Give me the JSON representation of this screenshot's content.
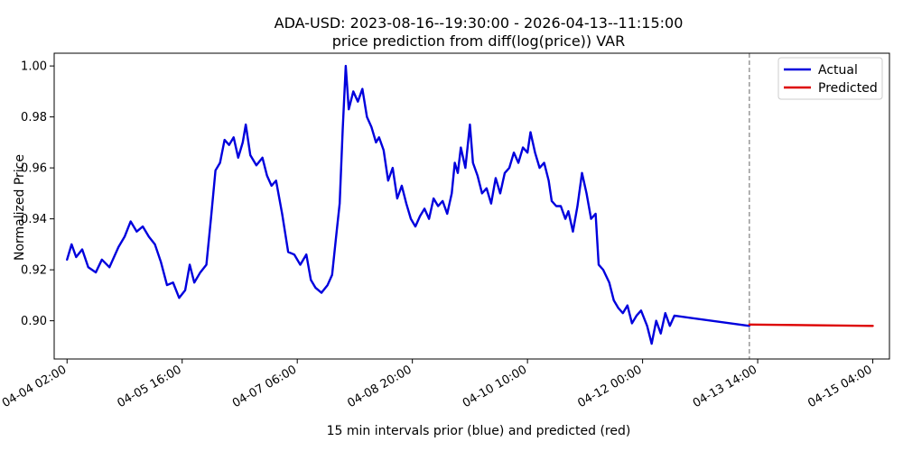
{
  "chart_data": {
    "type": "line",
    "title": "ADA-USD: 2023-08-16--19:30:00 - 2026-04-13--11:15:00",
    "subtitle": "price prediction from diff(log(price)) VAR",
    "xlabel": "15 min intervals prior (blue) and predicted (red)",
    "ylabel": "Normalized Price",
    "ylim": [
      0.885,
      1.005
    ],
    "xlim": [
      "2026-04-03 21:45",
      "2026-04-15 09:30"
    ],
    "y_ticks": [
      0.9,
      0.92,
      0.94,
      0.96,
      0.98,
      1.0
    ],
    "y_tick_labels": [
      "0.90",
      "0.92",
      "0.94",
      "0.96",
      "0.98",
      "1.00"
    ],
    "x_ticks": [
      "2026-04-04 02:00",
      "2026-04-05 16:00",
      "2026-04-07 06:00",
      "2026-04-08 20:00",
      "2026-04-10 10:00",
      "2026-04-12 00:00",
      "2026-04-13 14:00",
      "2026-04-15 04:00"
    ],
    "x_tick_labels": [
      "04-04 02:00",
      "04-05 16:00",
      "04-07 06:00",
      "04-08 20:00",
      "04-10 10:00",
      "04-12 00:00",
      "04-13 14:00",
      "04-15 04:00"
    ],
    "forecast_start": "2026-04-13 11:15",
    "grid": false,
    "legend_position": "top-right",
    "series": [
      {
        "name": "Actual",
        "color": "#0000dd",
        "points": [
          [
            "2026-04-04 02:00",
            0.924
          ],
          [
            "2026-04-04 03:30",
            0.93
          ],
          [
            "2026-04-04 05:00",
            0.925
          ],
          [
            "2026-04-04 07:00",
            0.928
          ],
          [
            "2026-04-04 09:00",
            0.921
          ],
          [
            "2026-04-04 11:30",
            0.919
          ],
          [
            "2026-04-04 13:30",
            0.924
          ],
          [
            "2026-04-04 16:00",
            0.921
          ],
          [
            "2026-04-04 19:00",
            0.929
          ],
          [
            "2026-04-04 21:00",
            0.933
          ],
          [
            "2026-04-04 23:00",
            0.939
          ],
          [
            "2026-04-05 01:00",
            0.935
          ],
          [
            "2026-04-05 03:00",
            0.937
          ],
          [
            "2026-04-05 05:00",
            0.933
          ],
          [
            "2026-04-05 07:00",
            0.93
          ],
          [
            "2026-04-05 09:00",
            0.923
          ],
          [
            "2026-04-05 11:00",
            0.914
          ],
          [
            "2026-04-05 13:00",
            0.915
          ],
          [
            "2026-04-05 15:00",
            0.909
          ],
          [
            "2026-04-05 17:00",
            0.912
          ],
          [
            "2026-04-05 18:30",
            0.922
          ],
          [
            "2026-04-05 20:00",
            0.915
          ],
          [
            "2026-04-05 22:00",
            0.919
          ],
          [
            "2026-04-06 00:00",
            0.922
          ],
          [
            "2026-04-06 01:30",
            0.94
          ],
          [
            "2026-04-06 03:00",
            0.959
          ],
          [
            "2026-04-06 04:30",
            0.962
          ],
          [
            "2026-04-06 06:00",
            0.971
          ],
          [
            "2026-04-06 07:30",
            0.969
          ],
          [
            "2026-04-06 09:00",
            0.972
          ],
          [
            "2026-04-06 10:30",
            0.964
          ],
          [
            "2026-04-06 12:00",
            0.97
          ],
          [
            "2026-04-06 13:00",
            0.977
          ],
          [
            "2026-04-06 14:30",
            0.965
          ],
          [
            "2026-04-06 16:30",
            0.961
          ],
          [
            "2026-04-06 18:30",
            0.964
          ],
          [
            "2026-04-06 20:00",
            0.957
          ],
          [
            "2026-04-06 21:30",
            0.953
          ],
          [
            "2026-04-06 23:00",
            0.955
          ],
          [
            "2026-04-07 01:00",
            0.942
          ],
          [
            "2026-04-07 03:00",
            0.927
          ],
          [
            "2026-04-07 05:00",
            0.926
          ],
          [
            "2026-04-07 07:00",
            0.922
          ],
          [
            "2026-04-07 09:00",
            0.926
          ],
          [
            "2026-04-07 10:30",
            0.916
          ],
          [
            "2026-04-07 12:00",
            0.913
          ],
          [
            "2026-04-07 14:00",
            0.911
          ],
          [
            "2026-04-07 16:00",
            0.914
          ],
          [
            "2026-04-07 17:30",
            0.918
          ],
          [
            "2026-04-07 19:00",
            0.935
          ],
          [
            "2026-04-07 20:00",
            0.946
          ],
          [
            "2026-04-07 21:00",
            0.975
          ],
          [
            "2026-04-07 22:00",
            1.0
          ],
          [
            "2026-04-07 23:00",
            0.983
          ],
          [
            "2026-04-08 00:30",
            0.99
          ],
          [
            "2026-04-08 02:00",
            0.986
          ],
          [
            "2026-04-08 03:30",
            0.991
          ],
          [
            "2026-04-08 05:00",
            0.98
          ],
          [
            "2026-04-08 06:30",
            0.976
          ],
          [
            "2026-04-08 08:00",
            0.97
          ],
          [
            "2026-04-08 09:00",
            0.972
          ],
          [
            "2026-04-08 10:30",
            0.967
          ],
          [
            "2026-04-08 12:00",
            0.955
          ],
          [
            "2026-04-08 13:30",
            0.96
          ],
          [
            "2026-04-08 15:00",
            0.948
          ],
          [
            "2026-04-08 16:30",
            0.953
          ],
          [
            "2026-04-08 18:00",
            0.946
          ],
          [
            "2026-04-08 19:30",
            0.94
          ],
          [
            "2026-04-08 21:00",
            0.937
          ],
          [
            "2026-04-08 22:30",
            0.941
          ],
          [
            "2026-04-09 00:00",
            0.944
          ],
          [
            "2026-04-09 01:30",
            0.94
          ],
          [
            "2026-04-09 03:00",
            0.948
          ],
          [
            "2026-04-09 04:30",
            0.945
          ],
          [
            "2026-04-09 06:00",
            0.947
          ],
          [
            "2026-04-09 07:30",
            0.942
          ],
          [
            "2026-04-09 09:00",
            0.95
          ],
          [
            "2026-04-09 10:00",
            0.962
          ],
          [
            "2026-04-09 11:00",
            0.958
          ],
          [
            "2026-04-09 12:00",
            0.968
          ],
          [
            "2026-04-09 13:30",
            0.96
          ],
          [
            "2026-04-09 15:00",
            0.977
          ],
          [
            "2026-04-09 16:00",
            0.962
          ],
          [
            "2026-04-09 17:30",
            0.957
          ],
          [
            "2026-04-09 19:00",
            0.95
          ],
          [
            "2026-04-09 20:30",
            0.952
          ],
          [
            "2026-04-09 22:00",
            0.946
          ],
          [
            "2026-04-09 23:30",
            0.956
          ],
          [
            "2026-04-10 01:00",
            0.95
          ],
          [
            "2026-04-10 02:30",
            0.958
          ],
          [
            "2026-04-10 04:00",
            0.96
          ],
          [
            "2026-04-10 05:30",
            0.966
          ],
          [
            "2026-04-10 07:00",
            0.962
          ],
          [
            "2026-04-10 08:30",
            0.968
          ],
          [
            "2026-04-10 10:00",
            0.966
          ],
          [
            "2026-04-10 11:00",
            0.974
          ],
          [
            "2026-04-10 12:30",
            0.966
          ],
          [
            "2026-04-10 14:00",
            0.96
          ],
          [
            "2026-04-10 15:30",
            0.962
          ],
          [
            "2026-04-10 17:00",
            0.955
          ],
          [
            "2026-04-10 18:00",
            0.947
          ],
          [
            "2026-04-10 19:30",
            0.945
          ],
          [
            "2026-04-10 21:00",
            0.945
          ],
          [
            "2026-04-10 22:30",
            0.94
          ],
          [
            "2026-04-10 23:30",
            0.943
          ],
          [
            "2026-04-11 01:00",
            0.935
          ],
          [
            "2026-04-11 02:30",
            0.945
          ],
          [
            "2026-04-11 04:00",
            0.958
          ],
          [
            "2026-04-11 05:30",
            0.95
          ],
          [
            "2026-04-11 07:00",
            0.94
          ],
          [
            "2026-04-11 08:30",
            0.942
          ],
          [
            "2026-04-11 09:30",
            0.922
          ],
          [
            "2026-04-11 11:00",
            0.92
          ],
          [
            "2026-04-11 13:00",
            0.915
          ],
          [
            "2026-04-11 14:30",
            0.908
          ],
          [
            "2026-04-11 16:00",
            0.905
          ],
          [
            "2026-04-11 17:30",
            0.903
          ],
          [
            "2026-04-11 19:00",
            0.906
          ],
          [
            "2026-04-11 20:30",
            0.899
          ],
          [
            "2026-04-11 22:00",
            0.902
          ],
          [
            "2026-04-11 23:30",
            0.904
          ],
          [
            "2026-04-12 01:30",
            0.898
          ],
          [
            "2026-04-12 03:00",
            0.891
          ],
          [
            "2026-04-12 04:30",
            0.9
          ],
          [
            "2026-04-12 06:00",
            0.895
          ],
          [
            "2026-04-12 07:30",
            0.903
          ],
          [
            "2026-04-12 09:00",
            0.898
          ],
          [
            "2026-04-12 10:30",
            0.902
          ],
          [
            "2026-04-13 11:15",
            0.898
          ]
        ]
      },
      {
        "name": "Predicted",
        "color": "#dd0000",
        "points": [
          [
            "2026-04-13 11:15",
            0.8985
          ],
          [
            "2026-04-15 04:00",
            0.898
          ]
        ]
      }
    ]
  }
}
